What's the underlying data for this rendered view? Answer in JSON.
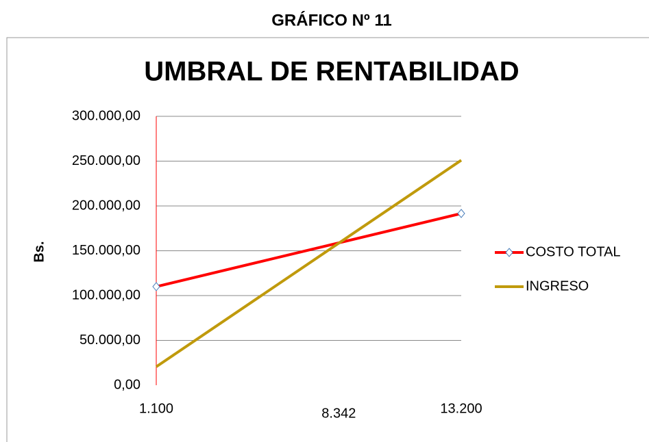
{
  "page_title": "GRÁFICO Nº 11",
  "chart_data": {
    "type": "line",
    "title": "UMBRAL DE RENTABILIDAD",
    "y_label": "Bs.",
    "x": [
      1100,
      13200
    ],
    "xlim": [
      1100,
      13200
    ],
    "xticks": [
      {
        "value": 1100,
        "label": "1.100"
      },
      {
        "value": 8342,
        "label": "8.342"
      },
      {
        "value": 13200,
        "label": "13.200"
      }
    ],
    "ylim": [
      0,
      300000
    ],
    "yticks": [
      {
        "value": 0,
        "label": "0,00"
      },
      {
        "value": 50000,
        "label": "50.000,00"
      },
      {
        "value": 100000,
        "label": "100.000,00"
      },
      {
        "value": 150000,
        "label": "150.000,00"
      },
      {
        "value": 200000,
        "label": "200.000,00"
      },
      {
        "value": 250000,
        "label": "250.000,00"
      },
      {
        "value": 300000,
        "label": "300.000,00"
      }
    ],
    "grid": true,
    "legend": "right",
    "series": [
      {
        "name": "COSTO TOTAL",
        "color": "#ff0000",
        "marker": "diamond",
        "values": [
          110000,
          191600
        ]
      },
      {
        "name": "INGRESO",
        "color": "#c09a0c",
        "values": [
          20600,
          251000
        ]
      }
    ]
  }
}
